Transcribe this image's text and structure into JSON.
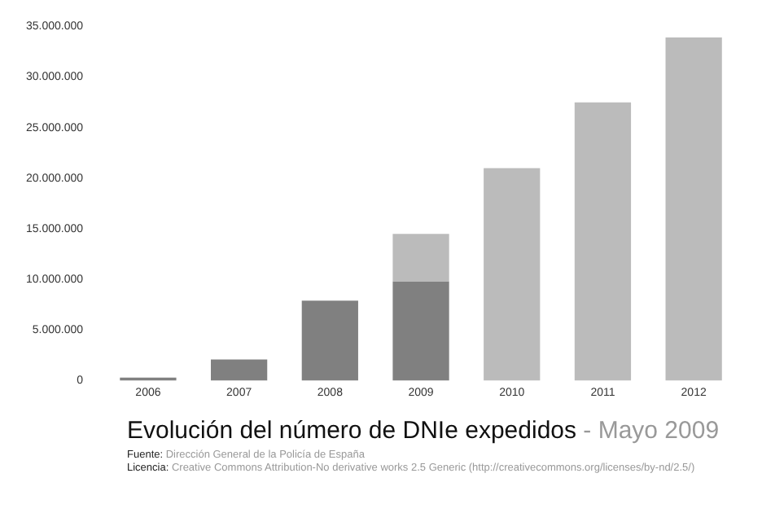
{
  "chart_data": {
    "type": "bar",
    "title": "Evolución del número de DNIe expedidos",
    "subtitle": "- Mayo 2009",
    "categories": [
      "2006",
      "2007",
      "2008",
      "2009",
      "2010",
      "2011",
      "2012"
    ],
    "stacked": true,
    "series": [
      {
        "color": "#808080",
        "values": [
          300000,
          2100000,
          7900000,
          9800000,
          null,
          null,
          null
        ]
      },
      {
        "color": "#bbbbbb",
        "values": [
          null,
          null,
          null,
          4700000,
          21000000,
          27500000,
          33900000
        ]
      }
    ],
    "ylim": [
      0,
      35000000
    ],
    "yticks": [
      0,
      {
        "value": 5000000,
        "label": "5.000.000"
      },
      {
        "value": 10000000,
        "label": "10.000.000"
      },
      {
        "value": 15000000,
        "label": "15.000.000"
      },
      {
        "value": 20000000,
        "label": "20.000.000"
      },
      {
        "value": 25000000,
        "label": "25.000.000"
      },
      {
        "value": 30000000,
        "label": "30.000.000"
      },
      {
        "value": 35000000,
        "label": "35.000.000"
      }
    ],
    "legend": false,
    "annotations": [
      "Fuente: Dirección General de la Policía de España",
      "Licencia: Creative Commons Attribution-No derivative works 2.5 Generic (http://creativecommons.org/licenses/by-nd/2.5/)"
    ]
  }
}
